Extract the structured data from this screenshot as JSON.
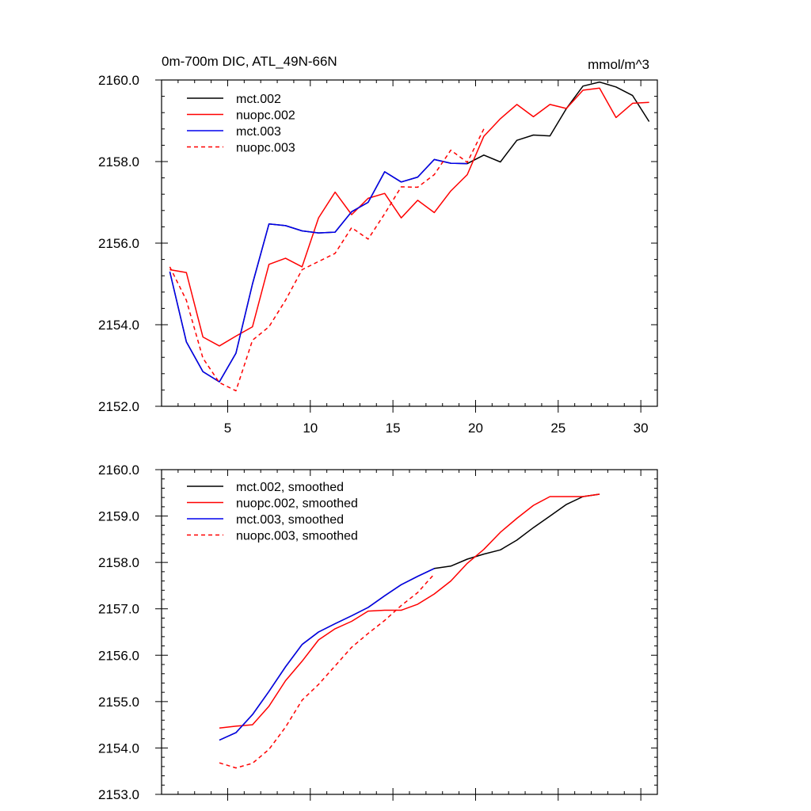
{
  "chart_data": [
    {
      "type": "line",
      "title": "0m-700m DIC, ATL_49N-66N",
      "units": "mmol/m^3",
      "xlim": [
        1,
        31
      ],
      "ylim": [
        2152,
        2160
      ],
      "xticks": [
        5,
        10,
        15,
        20,
        25,
        30
      ],
      "xtick_labels": [
        "5",
        "10",
        "15",
        "20",
        "25",
        "30"
      ],
      "yticks": [
        2152,
        2154,
        2156,
        2158,
        2160
      ],
      "ytick_labels": [
        "2152.0",
        "2154.0",
        "2156.0",
        "2158.0",
        "2160.0"
      ],
      "legend_position": "top-left",
      "series": [
        {
          "name": "mct.002",
          "color": "#000000",
          "dash": "solid",
          "x": [
            1.5,
            2.5,
            3.5,
            4.5,
            5.5,
            6.5,
            7.5,
            8.5,
            9.5,
            10.5,
            11.5,
            12.5,
            13.5,
            14.5,
            15.5,
            16.5,
            17.5,
            18.5,
            19.5,
            20.5,
            21.5,
            22.5,
            23.5,
            24.5,
            25.5,
            26.5,
            27.5,
            28.5,
            29.5,
            30.5
          ],
          "values": [
            2155.3,
            2153.58,
            2152.85,
            2152.6,
            2153.3,
            2155.0,
            2156.47,
            2156.43,
            2156.3,
            2156.25,
            2156.27,
            2156.77,
            2157.0,
            2157.75,
            2157.5,
            2157.62,
            2158.05,
            2157.96,
            2157.95,
            2158.16,
            2157.99,
            2158.52,
            2158.65,
            2158.63,
            2159.3,
            2159.85,
            2159.95,
            2159.83,
            2159.62,
            2158.98
          ]
        },
        {
          "name": "nuopc.002",
          "color": "#ff0000",
          "dash": "solid",
          "x": [
            1.5,
            2.5,
            3.5,
            4.5,
            5.5,
            6.5,
            7.5,
            8.5,
            9.5,
            10.5,
            11.5,
            12.5,
            13.5,
            14.5,
            15.5,
            16.5,
            17.5,
            18.5,
            19.5,
            20.5,
            21.5,
            22.5,
            23.5,
            24.5,
            25.5,
            26.5,
            27.5,
            28.5,
            29.5,
            30.5
          ],
          "values": [
            2155.35,
            2155.28,
            2153.7,
            2153.48,
            2153.72,
            2153.95,
            2155.48,
            2155.63,
            2155.42,
            2156.62,
            2157.25,
            2156.7,
            2157.1,
            2157.22,
            2156.62,
            2157.05,
            2156.75,
            2157.28,
            2157.68,
            2158.62,
            2159.05,
            2159.4,
            2159.1,
            2159.4,
            2159.3,
            2159.75,
            2159.8,
            2159.08,
            2159.43,
            2159.45
          ]
        },
        {
          "name": "mct.003",
          "color": "#0000ee",
          "dash": "solid",
          "x": [
            1.5,
            2.5,
            3.5,
            4.5,
            5.5,
            6.5,
            7.5,
            8.5,
            9.5,
            10.5,
            11.5,
            12.5,
            13.5,
            14.5,
            15.5,
            16.5,
            17.5,
            18.5,
            19.5
          ],
          "values": [
            2155.3,
            2153.58,
            2152.85,
            2152.6,
            2153.3,
            2155.0,
            2156.47,
            2156.43,
            2156.3,
            2156.25,
            2156.27,
            2156.77,
            2157.0,
            2157.75,
            2157.5,
            2157.62,
            2158.05,
            2157.96,
            2157.95
          ]
        },
        {
          "name": "nuopc.003",
          "color": "#ff0000",
          "dash": "dashed",
          "x": [
            1.5,
            2.5,
            3.5,
            4.5,
            5.5,
            6.5,
            7.5,
            8.5,
            9.5,
            10.5,
            11.5,
            12.5,
            13.5,
            14.5,
            15.5,
            16.5,
            17.5,
            18.5,
            19.5,
            20.5
          ],
          "values": [
            2155.42,
            2154.6,
            2153.18,
            2152.58,
            2152.38,
            2153.62,
            2153.95,
            2154.6,
            2155.35,
            2155.55,
            2155.75,
            2156.38,
            2156.1,
            2156.72,
            2157.38,
            2157.37,
            2157.68,
            2158.28,
            2157.98,
            2158.8
          ]
        }
      ]
    },
    {
      "type": "line",
      "title": "",
      "xlim": [
        1,
        31
      ],
      "ylim": [
        2153,
        2160
      ],
      "xticks": [
        5,
        10,
        15,
        20,
        25,
        30
      ],
      "xtick_labels": [],
      "yticks": [
        2153,
        2154,
        2155,
        2156,
        2157,
        2158,
        2159,
        2160
      ],
      "ytick_labels": [
        "2153.0",
        "2154.0",
        "2155.0",
        "2156.0",
        "2157.0",
        "2158.0",
        "2159.0",
        "2160.0"
      ],
      "legend_position": "top-left",
      "series": [
        {
          "name": "mct.002, smoothed",
          "color": "#000000",
          "dash": "solid",
          "x": [
            4.5,
            5.5,
            6.5,
            7.5,
            8.5,
            9.5,
            10.5,
            11.5,
            12.5,
            13.5,
            14.5,
            15.5,
            16.5,
            17.5,
            18.5,
            19.5,
            20.5,
            21.5,
            22.5,
            23.5,
            24.5,
            25.5,
            26.5,
            27.5
          ],
          "values": [
            2154.17,
            2154.33,
            2154.72,
            2155.22,
            2155.75,
            2156.23,
            2156.5,
            2156.68,
            2156.85,
            2157.03,
            2157.28,
            2157.52,
            2157.7,
            2157.87,
            2157.92,
            2158.07,
            2158.18,
            2158.27,
            2158.48,
            2158.75,
            2159.0,
            2159.25,
            2159.42,
            2159.47
          ]
        },
        {
          "name": "nuopc.002, smoothed",
          "color": "#ff0000",
          "dash": "solid",
          "x": [
            4.5,
            5.5,
            6.5,
            7.5,
            8.5,
            9.5,
            10.5,
            11.5,
            12.5,
            13.5,
            14.5,
            15.5,
            16.5,
            17.5,
            18.5,
            19.5,
            20.5,
            21.5,
            22.5,
            23.5,
            24.5,
            25.5,
            26.5,
            27.5
          ],
          "values": [
            2154.43,
            2154.47,
            2154.5,
            2154.9,
            2155.45,
            2155.87,
            2156.33,
            2156.57,
            2156.73,
            2156.95,
            2156.97,
            2156.97,
            2157.1,
            2157.32,
            2157.6,
            2157.98,
            2158.28,
            2158.65,
            2158.95,
            2159.23,
            2159.42,
            2159.42,
            2159.42,
            2159.47
          ]
        },
        {
          "name": "mct.003, smoothed",
          "color": "#0000ee",
          "dash": "solid",
          "x": [
            4.5,
            5.5,
            6.5,
            7.5,
            8.5,
            9.5,
            10.5,
            11.5,
            12.5,
            13.5,
            14.5,
            15.5,
            16.5,
            17.5
          ],
          "values": [
            2154.17,
            2154.33,
            2154.72,
            2155.22,
            2155.75,
            2156.23,
            2156.5,
            2156.68,
            2156.85,
            2157.03,
            2157.28,
            2157.52,
            2157.7,
            2157.87
          ]
        },
        {
          "name": "nuopc.003, smoothed",
          "color": "#ff0000",
          "dash": "dashed",
          "x": [
            4.5,
            5.5,
            6.5,
            7.5,
            8.5,
            9.5,
            10.5,
            11.5,
            12.5,
            13.5,
            14.5,
            15.5,
            16.5,
            17.5
          ],
          "values": [
            2153.68,
            2153.57,
            2153.67,
            2153.97,
            2154.45,
            2155.03,
            2155.37,
            2155.77,
            2156.17,
            2156.47,
            2156.75,
            2157.07,
            2157.35,
            2157.75
          ]
        }
      ]
    }
  ]
}
